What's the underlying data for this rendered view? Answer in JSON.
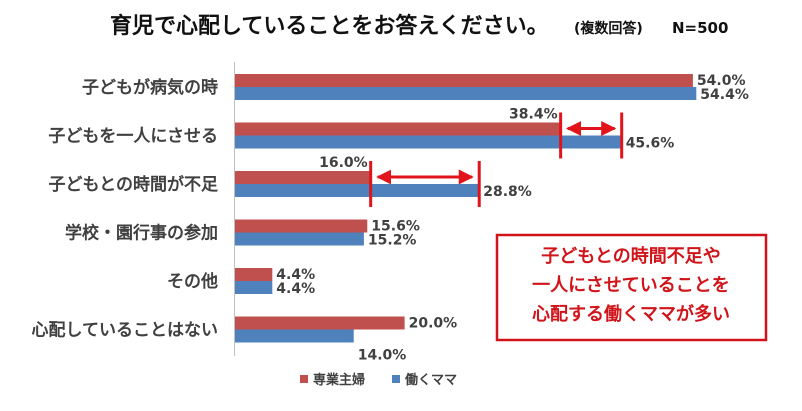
{
  "chart_data": {
    "type": "bar",
    "orientation": "horizontal",
    "title": "育児で心配していることをお答えください。",
    "subtitle": "(複数回答)",
    "sample_size": "N=500",
    "categories": [
      "子どもが病気の時",
      "子どもを一人にさせる",
      "子どもとの時間が不足",
      "学校・園行事の参加",
      "その他",
      "心配していることはない"
    ],
    "series": [
      {
        "name": "専業主婦",
        "color": "#c0504d",
        "values": [
          54.0,
          38.4,
          16.0,
          15.6,
          4.4,
          20.0
        ],
        "labels": [
          "54.0%",
          "38.4%",
          "16.0%",
          "15.6%",
          "4.4%",
          "20.0%"
        ]
      },
      {
        "name": "働くママ",
        "color": "#4f81bd",
        "values": [
          54.4,
          45.6,
          28.8,
          15.2,
          4.4,
          14.0
        ],
        "labels": [
          "54.4%",
          "45.6%",
          "28.8%",
          "15.2%",
          "4.4%",
          "14.0%"
        ]
      }
    ],
    "xlim": [
      0,
      60
    ],
    "grid": false,
    "legend_position": "bottom",
    "annotation": {
      "lines": [
        "子どもとの時間不足や",
        "一人にさせていることを",
        "心配する働くママが多い"
      ],
      "color": "#d0141a"
    },
    "gap_arrows": [
      {
        "category_index": 1
      },
      {
        "category_index": 2
      }
    ]
  }
}
